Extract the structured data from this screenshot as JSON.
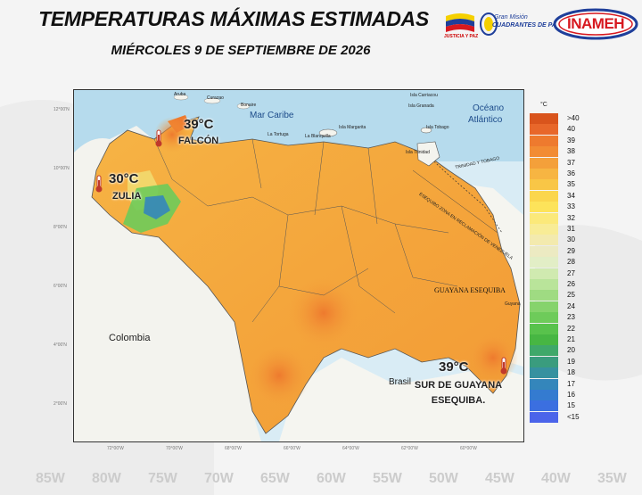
{
  "header": {
    "title": "TEMPERATURAS MÁXIMAS ESTIMADAS",
    "date": "MIÉRCOLES 9 DE SEPTIEMBRE DE 2026"
  },
  "logos": {
    "justicia": "JUSTICIA Y PAZ",
    "mision_line1": "Gran Misión",
    "mision_line2": "CUADRANTES DE PAZ",
    "inameh": "INAMEH"
  },
  "map": {
    "lat_labels": [
      "12°00'N",
      "10°00'N",
      "8°00'N",
      "6°00'N",
      "4°00'N",
      "2°00'N"
    ],
    "lon_labels": [
      "72°00'W",
      "70°00'W",
      "68°00'W",
      "66°00'W",
      "64°00'W",
      "62°00'W",
      "60°00'W"
    ],
    "seas": {
      "caribe": "Mar Caribe",
      "atlantico_1": "Océano",
      "atlantico_2": "Atlántico"
    },
    "countries": {
      "colombia": "Colombia",
      "brasil": "Brasil"
    },
    "guayana": "GUAYANA ESEQUIBA",
    "small_places": [
      "Aruba",
      "Curazao",
      "Bonaire",
      "Isla Carriacou",
      "Isla Granada",
      "Isla Tobago",
      "Isla Trinidad",
      "La Blanquilla",
      "La Tortuga",
      "Isla Margarita",
      "Guyana"
    ],
    "boundary_labels": [
      "TRINIDAD Y TOBAGO",
      "ESEQUIBO ZONA EN RECLAMACIÓN DE VENEZUELA"
    ]
  },
  "annotations": [
    {
      "value": "39°C",
      "name": "FALCÓN"
    },
    {
      "value": "30°C",
      "name": "ZULIA"
    },
    {
      "value": "39°C",
      "name": "SUR DE GUAYANA ESEQUIBA."
    }
  ],
  "legend": {
    "unit": "°C",
    "items": [
      {
        "label": ">40",
        "color": "#d9541c"
      },
      {
        "label": "40",
        "color": "#e8672a"
      },
      {
        "label": "39",
        "color": "#ee7a2e"
      },
      {
        "label": "38",
        "color": "#f28c33"
      },
      {
        "label": "37",
        "color": "#f4a03a"
      },
      {
        "label": "36",
        "color": "#f7b542"
      },
      {
        "label": "35",
        "color": "#f9c646"
      },
      {
        "label": "34",
        "color": "#fbd64c"
      },
      {
        "label": "33",
        "color": "#fde35a"
      },
      {
        "label": "32",
        "color": "#fbe97a"
      },
      {
        "label": "31",
        "color": "#f8ec96"
      },
      {
        "label": "30",
        "color": "#f3eaae"
      },
      {
        "label": "29",
        "color": "#eceac2"
      },
      {
        "label": "28",
        "color": "#e2eec6"
      },
      {
        "label": "27",
        "color": "#d0eab0"
      },
      {
        "label": "26",
        "color": "#b9e49a"
      },
      {
        "label": "25",
        "color": "#9fdb82"
      },
      {
        "label": "24",
        "color": "#86d36c"
      },
      {
        "label": "23",
        "color": "#6ecb5a"
      },
      {
        "label": "22",
        "color": "#58c24c"
      },
      {
        "label": "21",
        "color": "#47b643"
      },
      {
        "label": "20",
        "color": "#3fa86a"
      },
      {
        "label": "19",
        "color": "#3a9c7e"
      },
      {
        "label": "18",
        "color": "#3691a0"
      },
      {
        "label": "17",
        "color": "#3486bb"
      },
      {
        "label": "16",
        "color": "#347bd0"
      },
      {
        "label": "15",
        "color": "#3b6fe0"
      },
      {
        "label": "<15",
        "color": "#4b64ea"
      }
    ]
  },
  "bottom_axis": [
    "85W",
    "80W",
    "75W",
    "70W",
    "65W",
    "60W",
    "55W",
    "50W",
    "45W",
    "40W",
    "35W"
  ]
}
